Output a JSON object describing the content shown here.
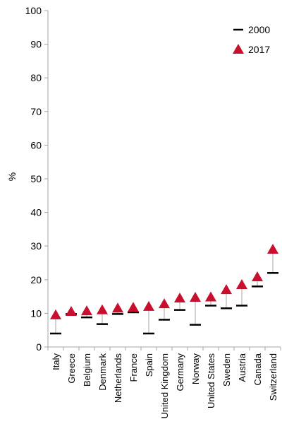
{
  "chart_data": {
    "type": "scatter",
    "categories": [
      "Italy",
      "Greece",
      "Belgium",
      "Denmark",
      "Netherlands",
      "France",
      "Spain",
      "United Kingdom",
      "Germany",
      "Norway",
      "United States",
      "Sweden",
      "Austria",
      "Canada",
      "Switzerland"
    ],
    "series": [
      {
        "name": "2000",
        "values": [
          4.0,
          9.8,
          8.8,
          6.8,
          9.8,
          10.3,
          4.0,
          8.1,
          11.0,
          6.6,
          12.3,
          11.5,
          12.3,
          18.0,
          22.0
        ]
      },
      {
        "name": "2017",
        "values": [
          9.5,
          10.5,
          10.7,
          11.0,
          11.5,
          11.7,
          12.0,
          12.8,
          14.5,
          14.7,
          14.8,
          17.0,
          18.5,
          20.8,
          29.0
        ]
      }
    ],
    "ylabel": "%",
    "ylim": [
      0,
      100
    ],
    "yticks": [
      0,
      10,
      20,
      30,
      40,
      50,
      60,
      70,
      80,
      90,
      100
    ],
    "grid": false,
    "legend_position": "top-right",
    "colors": {
      "2000": "#000000",
      "2017": "#c8102e",
      "connector": "#a6a6a6",
      "axis": "#a6a6a6"
    }
  }
}
